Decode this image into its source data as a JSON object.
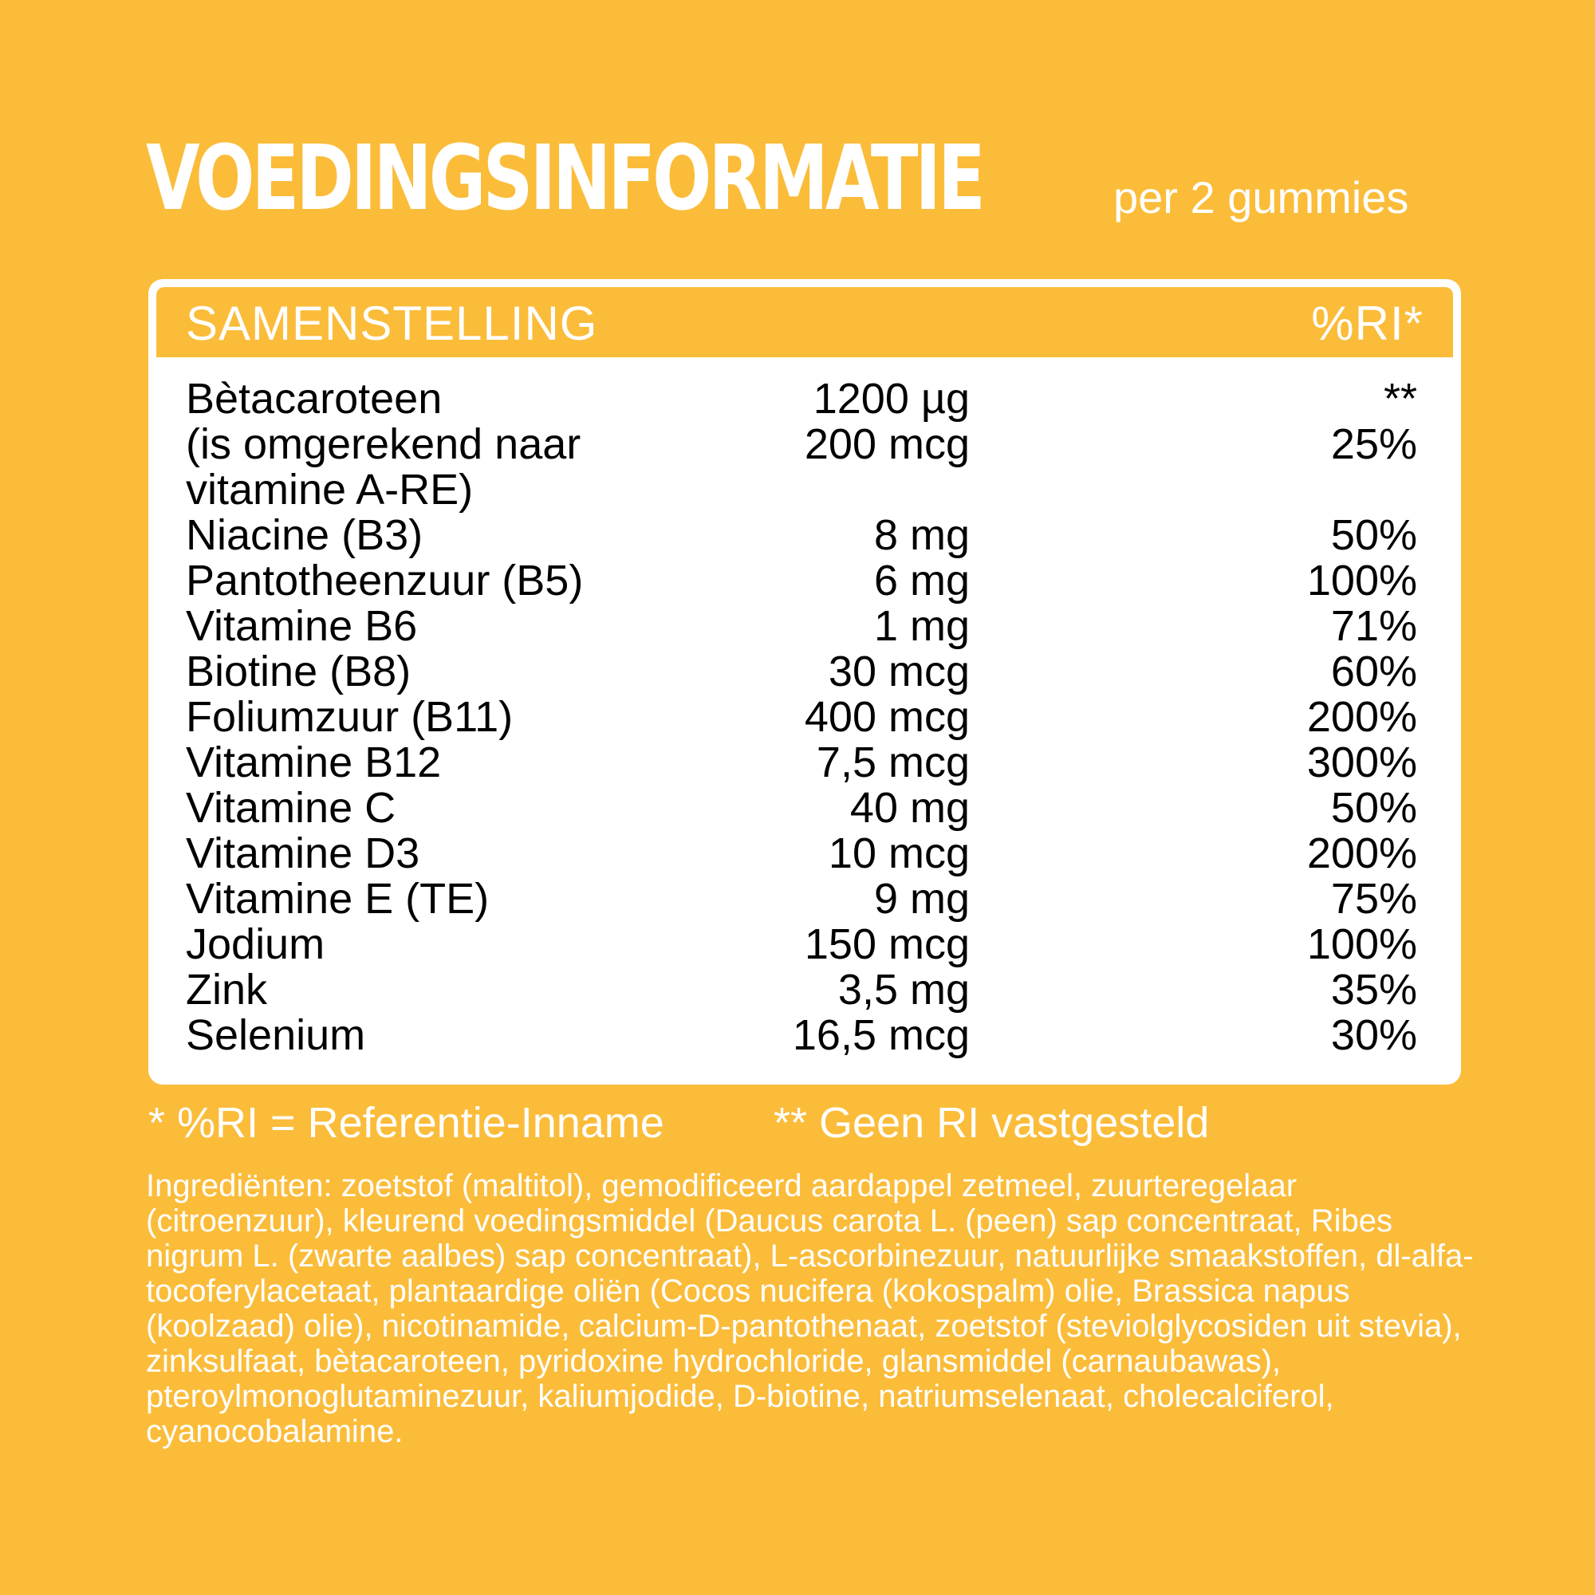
{
  "header": {
    "title": "VOEDINGSINFORMATIE",
    "subtitle": "per 2 gummies"
  },
  "table": {
    "col_name": "SAMENSTELLING",
    "col_ri": "%RI*",
    "rows": [
      {
        "name": "Bètacaroteen",
        "amount": "1200 µg",
        "ri": "**"
      },
      {
        "name": "(is omgerekend naar\nvitamine A-RE)",
        "amount": "200 mcg",
        "ri": "25%"
      },
      {
        "name": "Niacine (B3)",
        "amount": "8 mg",
        "ri": "50%"
      },
      {
        "name": "Pantotheenzuur (B5)",
        "amount": "6 mg",
        "ri": "100%"
      },
      {
        "name": "Vitamine B6",
        "amount": "1 mg",
        "ri": "71%"
      },
      {
        "name": "Biotine (B8)",
        "amount": "30 mcg",
        "ri": "60%"
      },
      {
        "name": "Foliumzuur (B11)",
        "amount": "400 mcg",
        "ri": "200%"
      },
      {
        "name": "Vitamine B12",
        "amount": "7,5 mcg",
        "ri": "300%"
      },
      {
        "name": "Vitamine C",
        "amount": "40 mg",
        "ri": "50%"
      },
      {
        "name": "Vitamine D3",
        "amount": "10 mcg",
        "ri": "200%"
      },
      {
        "name": "Vitamine E (TE)",
        "amount": "9 mg",
        "ri": "75%"
      },
      {
        "name": "Jodium",
        "amount": "150 mcg",
        "ri": "100%"
      },
      {
        "name": "Zink",
        "amount": "3,5 mg",
        "ri": "35%"
      },
      {
        "name": "Selenium",
        "amount": "16,5 mcg",
        "ri": "30%"
      }
    ]
  },
  "footnotes": {
    "ri": "* %RI = Referentie-Inname",
    "no_ri": "** Geen RI vastgesteld"
  },
  "ingredients": "Ingrediënten: zoetstof (maltitol), gemodificeerd aardappel zetmeel, zuurteregelaar (citroenzuur), kleurend voedingsmiddel (Daucus carota L. (peen) sap concentraat, Ribes nigrum L. (zwarte aalbes) sap concentraat), L-ascorbinezuur, natuurlijke smaakstoffen, dl-alfa-tocoferylacetaat, plantaardige oliën (Cocos nucifera (kokospalm) olie, Brassica napus (koolzaad) olie), nicotinamide, calcium-D-pantothenaat, zoetstof (steviolglycosiden uit stevia), zinksulfaat, bètacaroteen, pyridoxine hydrochloride, glansmiddel (carnaubawas), pteroylmonoglutaminezuur, kaliumjodide, D-biotine, natriumselenaat, cholecalciferol, cyanocobalamine.",
  "colors": {
    "background": "#FBBC3A",
    "panel": "#FFFFFF",
    "text_dark": "#000000",
    "text_light": "#FFFFFF"
  }
}
